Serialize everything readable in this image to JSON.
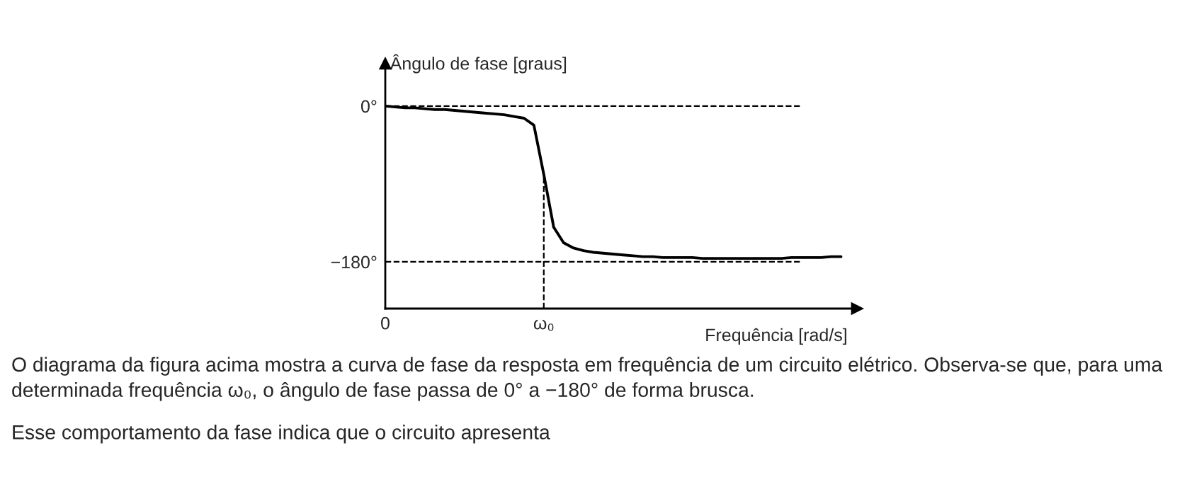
{
  "chart_data": {
    "type": "line",
    "ylabel": "Ângulo de fase [graus]",
    "xlabel": "Frequência [rad/s]",
    "categories": [
      "0",
      null,
      null,
      null,
      null,
      null,
      null,
      null,
      null,
      null,
      null,
      null,
      null,
      null,
      null,
      null,
      "ω₀",
      null,
      null,
      null,
      null,
      null,
      null,
      null,
      null,
      null,
      null,
      null,
      null,
      null,
      null,
      null,
      null,
      null,
      null,
      null,
      null,
      null,
      null,
      null,
      null,
      null,
      null,
      null,
      null,
      null,
      null
    ],
    "series": [
      {
        "color": "#000000",
        "values": [
          0,
          -1,
          -2,
          -2,
          -3,
          -4,
          -4,
          -5,
          -6,
          -7,
          -8,
          -9,
          -10,
          -12,
          -14,
          -22,
          -79,
          -140,
          -158,
          -164,
          -167,
          -169,
          -170,
          -171,
          -172,
          -173,
          -174,
          -174,
          -175,
          -175,
          -175,
          -175,
          -176,
          -176,
          -176,
          -176,
          -176,
          -176,
          -176,
          -176,
          -176,
          -175,
          -175,
          -175,
          -175,
          -174,
          -174
        ]
      }
    ],
    "ylim": [
      -234,
      49
    ],
    "yticks": [
      {
        "value": 0,
        "label": "0°"
      },
      {
        "value": -180,
        "label": "−180°"
      }
    ],
    "ref_lines": [
      {
        "axis": "y",
        "value": 0,
        "line_style": "dashed"
      },
      {
        "axis": "y",
        "value": -180,
        "line_style": "dashed"
      },
      {
        "axis": "x",
        "value": "ω₀",
        "line_style": "dashed"
      }
    ],
    "grid": false,
    "legend": false,
    "marker": "none",
    "line_style": "solid",
    "annotations": [
      "O diagrama da figura acima mostra a curva de fase da resposta em frequência de um circuito elétrico. Observa-se que, para uma determinada frequência ω₀, o ângulo de fase passa de 0° a −180° de forma brusca.",
      "Esse comportamento da fase indica que o circuito apresenta"
    ]
  }
}
